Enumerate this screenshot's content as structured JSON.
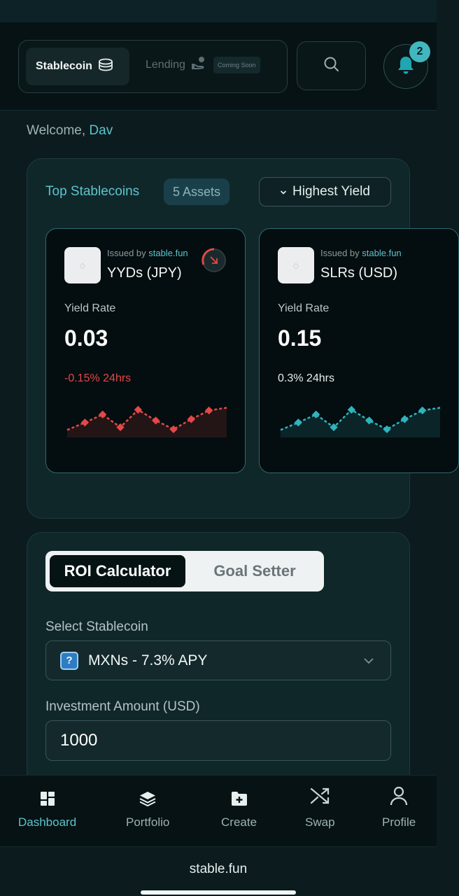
{
  "header": {
    "tabs": [
      {
        "label": "Stablecoin",
        "active": true
      },
      {
        "label": "Lending",
        "active": false,
        "tag": "Coming Soon"
      }
    ],
    "notifications_count": "2"
  },
  "welcome": {
    "prefix": "Welcome,",
    "name": "Dav"
  },
  "top_stablecoins": {
    "title": "Top Stablecoins",
    "assets_label": "5 Assets",
    "sort_label": "Highest Yield",
    "cards": [
      {
        "issued_prefix": "Issued by",
        "issuer": "stable.fun",
        "name": "YYDs (JPY)",
        "yield_label": "Yield Rate",
        "yield_value": "0.03",
        "change": "-0.15% 24hrs",
        "trend": "down",
        "color": "#e34848",
        "sparkline": [
          0.1,
          0.32,
          0.56,
          0.18,
          0.7,
          0.38,
          0.12,
          0.42,
          0.68,
          0.76
        ]
      },
      {
        "issued_prefix": "Issued by",
        "issuer": "stable.fun",
        "name": "SLRs (USD)",
        "yield_label": "Yield Rate",
        "yield_value": "0.15",
        "change": "0.3% 24hrs",
        "trend": "up",
        "color": "#2fb3bd",
        "sparkline": [
          0.1,
          0.32,
          0.56,
          0.18,
          0.7,
          0.38,
          0.12,
          0.42,
          0.68,
          0.76
        ]
      }
    ]
  },
  "calculator": {
    "tabs": [
      {
        "label": "ROI Calculator",
        "active": true
      },
      {
        "label": "Goal Setter",
        "active": false
      }
    ],
    "select_label": "Select Stablecoin",
    "selected_coin": "MXNs - 7.3% APY",
    "amount_label": "Investment Amount (USD)",
    "amount_value": "1000"
  },
  "bottom_nav": [
    {
      "label": "Dashboard",
      "icon": "dashboard-icon",
      "active": true
    },
    {
      "label": "Portfolio",
      "icon": "layers-icon",
      "active": false
    },
    {
      "label": "Create",
      "icon": "folder-plus-icon",
      "active": false
    },
    {
      "label": "Swap",
      "icon": "shuffle-icon",
      "active": false
    },
    {
      "label": "Profile",
      "icon": "user-icon",
      "active": false
    }
  ],
  "browser": {
    "url": "stable.fun"
  },
  "colors": {
    "accent": "#5ec4cc",
    "negative": "#e34848",
    "background": "#0b1b1e"
  }
}
